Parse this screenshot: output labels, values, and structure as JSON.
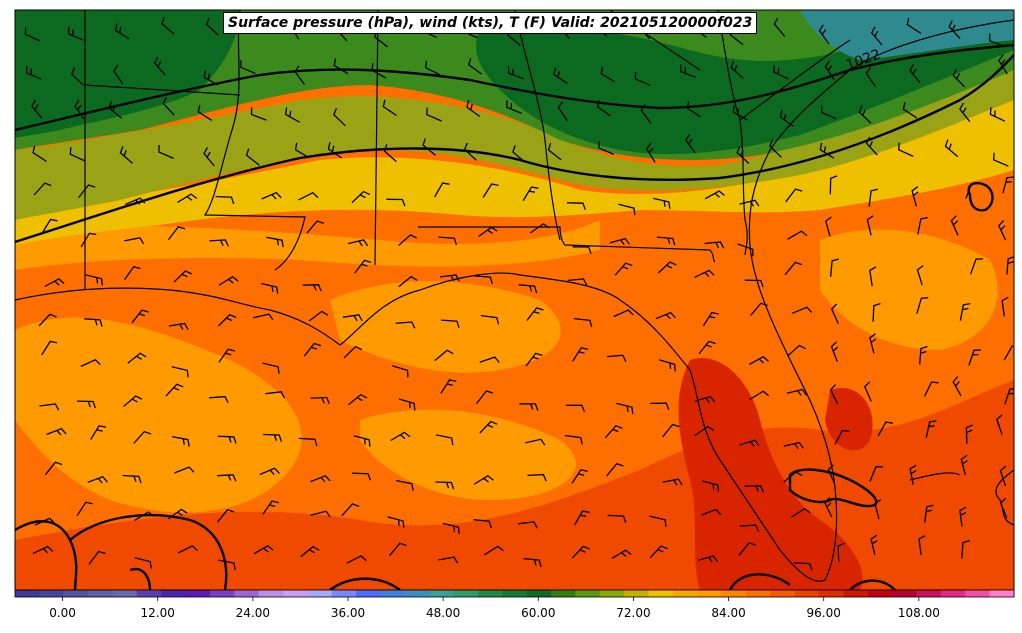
{
  "title": "Surface pressure (hPa), wind (kts), T (F) Valid: 202105120000f023",
  "contour_labels": [
    "1022"
  ],
  "colorbar": {
    "min": -6,
    "max": 120,
    "step": 3,
    "ticks": [
      "0.00",
      "12.00",
      "24.00",
      "36.00",
      "48.00",
      "60.00",
      "72.00",
      "84.00",
      "96.00",
      "108.00"
    ],
    "tick_values": [
      0,
      12,
      24,
      36,
      48,
      60,
      72,
      84,
      96,
      108
    ],
    "colors": [
      "#3a3a9a",
      "#45469e",
      "#5352a3",
      "#5f5ea8",
      "#6a68ad",
      "#5a3fb0",
      "#4a23b3",
      "#5a1ab8",
      "#7a3ec6",
      "#9b66d6",
      "#bb8fe6",
      "#c9a0f0",
      "#a8a8ff",
      "#7a88ff",
      "#4a6cff",
      "#3f7fe0",
      "#3a8fc0",
      "#37a09a",
      "#2f9a6a",
      "#1f8a4a",
      "#147a35",
      "#0d6b22",
      "#2f7f10",
      "#5a9a10",
      "#8aaa10",
      "#c8b000",
      "#f0c000",
      "#f5a800",
      "#ff9900",
      "#ff8400",
      "#ff6f00",
      "#f55a00",
      "#e84400",
      "#dc2e00",
      "#d01800",
      "#c40010",
      "#b80030",
      "#cc1060",
      "#e02a88",
      "#f050a8",
      "#ff80c8"
    ]
  },
  "legend_colors": {
    "dark_green": "#0b6a1f",
    "green": "#2f8a25",
    "olive": "#9aa315",
    "yellow": "#efc000",
    "light_orange": "#ff9a00",
    "orange": "#ff6f00",
    "dark_orange": "#f04a00",
    "red": "#d92400"
  }
}
